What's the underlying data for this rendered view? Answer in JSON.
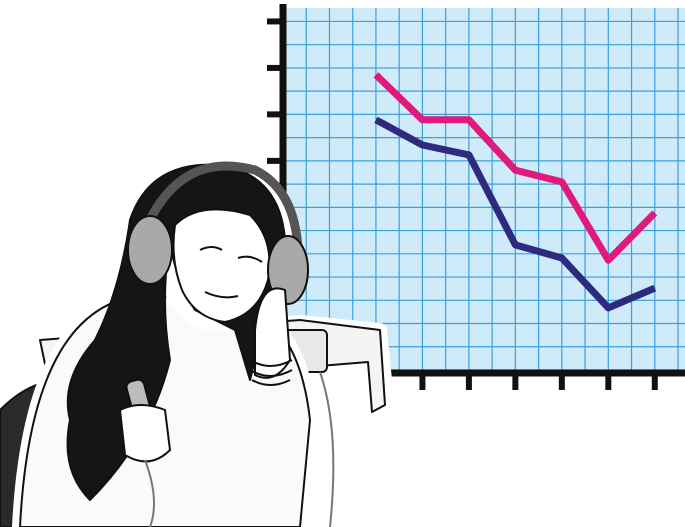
{
  "chart_data": {
    "type": "line",
    "x": [
      2,
      3,
      4,
      5,
      6,
      7,
      8
    ],
    "xlim": [
      0,
      8.65
    ],
    "ylim": [
      0,
      8
    ],
    "grid": true,
    "series": [
      {
        "color": "#e0197d",
        "values": [
          6.56,
          5.56,
          5.56,
          4.44,
          4.18,
          2.44,
          3.49
        ]
      },
      {
        "color": "#2e2a7e",
        "values": [
          5.56,
          5.0,
          4.78,
          2.78,
          2.49,
          1.38,
          1.82
        ]
      }
    ]
  }
}
